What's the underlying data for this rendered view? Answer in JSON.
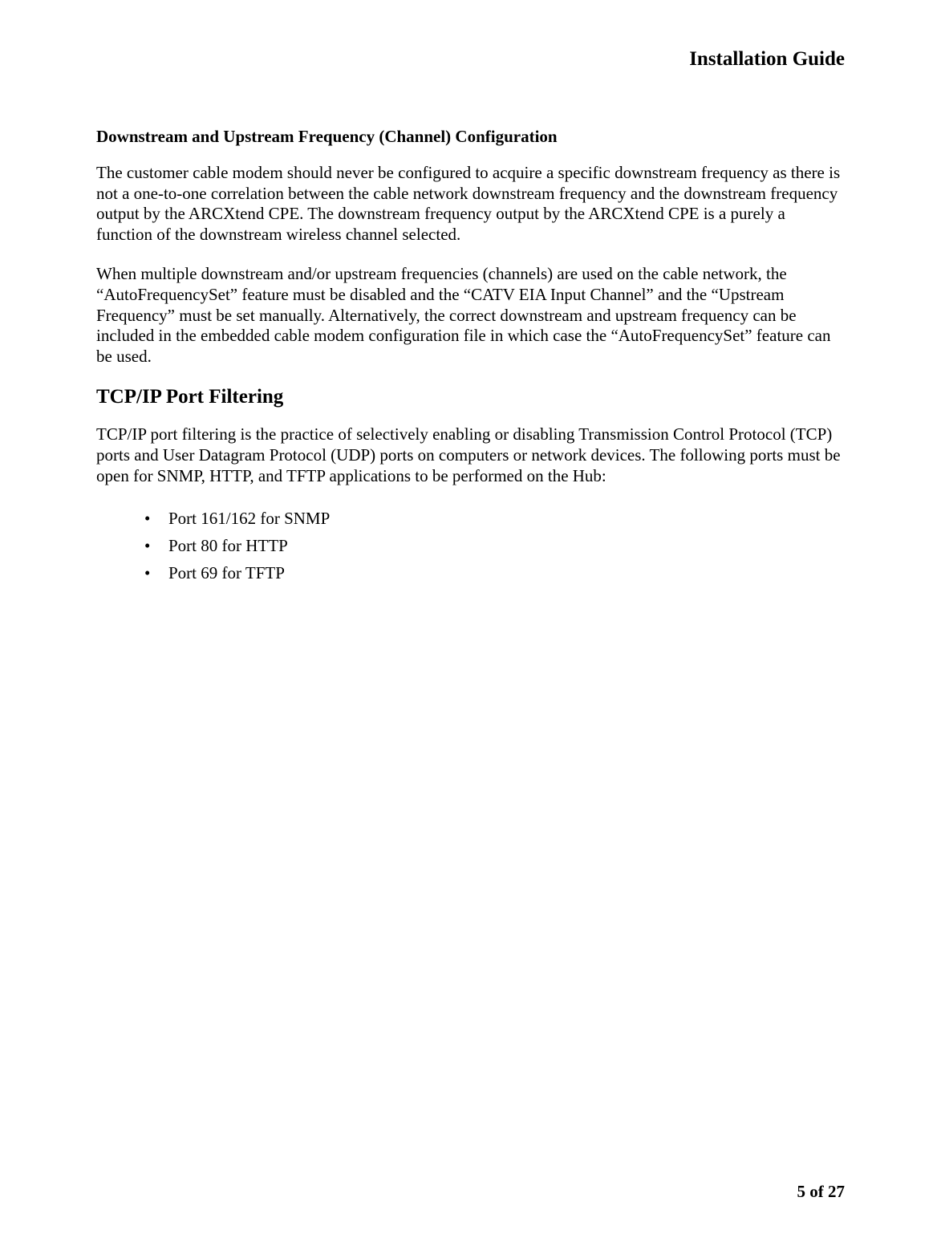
{
  "header": {
    "title": "Installation Guide"
  },
  "section1": {
    "heading": "Downstream and Upstream Frequency (Channel) Configuration",
    "para1": "The customer cable modem should never be configured to acquire a specific downstream frequency as there is not a one-to-one correlation between the cable network downstream frequency and the downstream frequency output by the ARCXtend CPE. The downstream frequency output by the ARCXtend CPE is a purely a function of the downstream wireless channel selected.",
    "para2": "When multiple downstream and/or upstream frequencies (channels) are used on the cable network, the “AutoFrequencySet” feature must be disabled and the “CATV EIA Input Channel” and the “Upstream Frequency” must be set manually. Alternatively, the correct downstream and upstream frequency can be included in the embedded cable modem configuration file in which case the “AutoFrequencySet” feature can be used."
  },
  "section2": {
    "heading": "TCP/IP Port Filtering",
    "para1": "TCP/IP port filtering is the practice of selectively enabling or disabling Transmission Control Protocol (TCP) ports and User Datagram Protocol (UDP) ports on computers or network devices. The following ports must be open for SNMP, HTTP, and TFTP applications to be performed on the Hub:",
    "ports": [
      "Port 161/162 for SNMP",
      "Port 80 for HTTP",
      "Port 69 for TFTP"
    ]
  },
  "footer": {
    "page_label": "5 of 27"
  }
}
